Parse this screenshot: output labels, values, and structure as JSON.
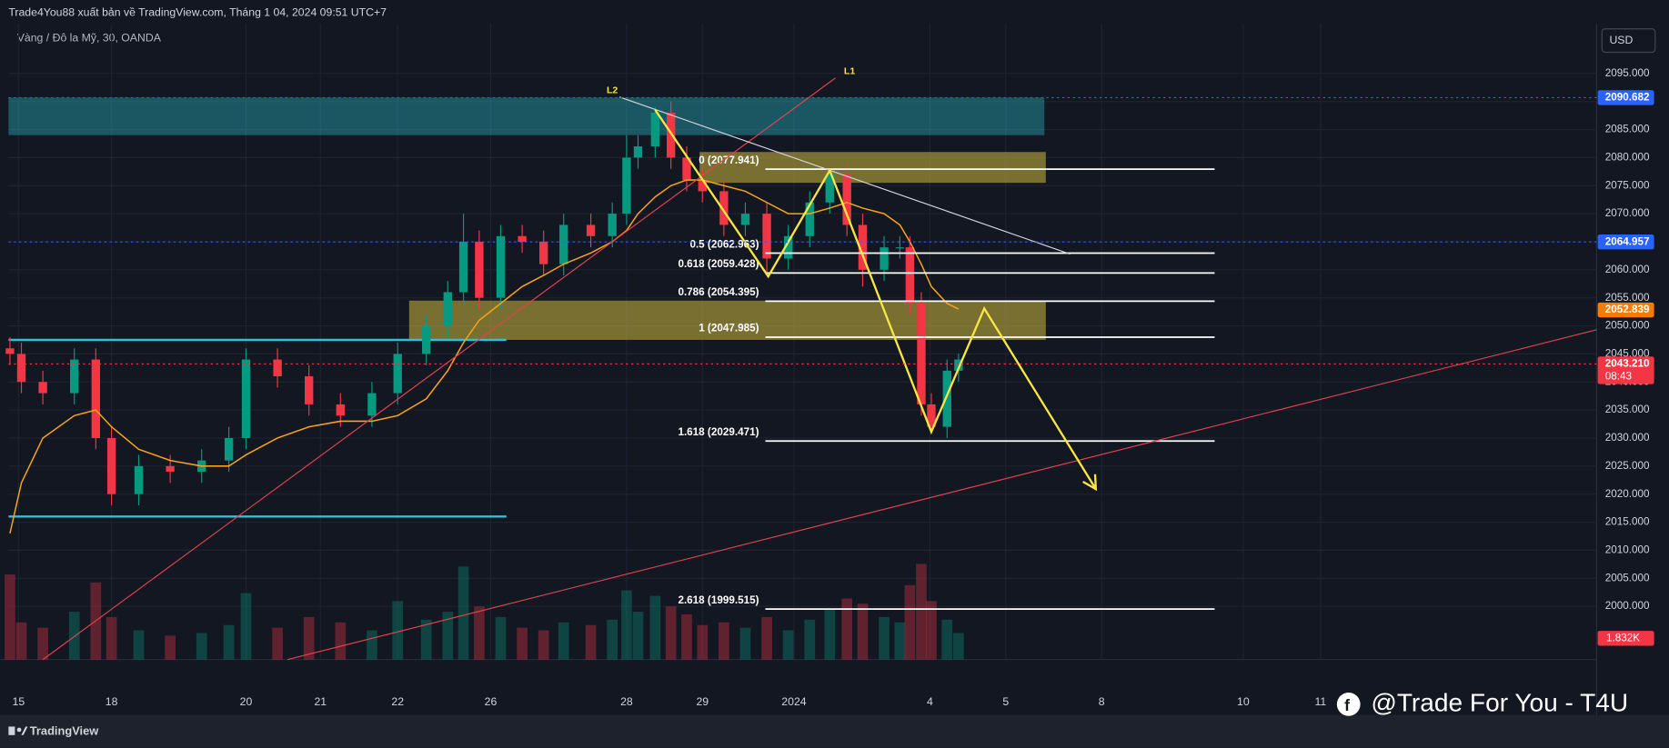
{
  "header": {
    "publisher": "Trade4You88 xuất bản về TradingView.com, Tháng 1 04, 2024 09:51 UTC+7",
    "symbol": "Vàng / Đô la Mỹ, 30, OANDA",
    "currency": "USD"
  },
  "footer": {
    "brand": "TradingView",
    "watermark": "@Trade For You - T4U"
  },
  "chart_data": {
    "type": "candlestick",
    "x": [
      1,
      9,
      24,
      46,
      61,
      72,
      91,
      113,
      135,
      154,
      166,
      188,
      210,
      232,
      254,
      272,
      292,
      307,
      318,
      329,
      344,
      359,
      374,
      388,
      407,
      422,
      432,
      440,
      452,
      463,
      474,
      485,
      500,
      515,
      530,
      545,
      560,
      574,
      586,
      597,
      612,
      623,
      630,
      638,
      645,
      656,
      664
    ],
    "open": [
      2046,
      2045,
      2040,
      2038,
      2044,
      2030,
      2020,
      2025,
      2024,
      2026,
      2030,
      2044,
      2041,
      2036,
      2034,
      2038,
      2045,
      2050,
      2056,
      2065,
      2055,
      2066,
      2065,
      2061,
      2068,
      2066,
      2070,
      2080,
      2082,
      2088,
      2080,
      2076,
      2074,
      2068,
      2070,
      2062,
      2066,
      2072,
      2077,
      2068,
      2060,
      2064,
      2064,
      2054,
      2036,
      2032,
      2042
    ],
    "high": [
      2048,
      2047,
      2042,
      2046,
      2046,
      2032,
      2027,
      2027,
      2028,
      2032,
      2046,
      2046,
      2043,
      2038,
      2040,
      2047,
      2052,
      2058,
      2070,
      2067,
      2068,
      2068,
      2067,
      2070,
      2070,
      2072,
      2084,
      2084,
      2089,
      2090,
      2082,
      2078,
      2076,
      2072,
      2072,
      2068,
      2074,
      2078,
      2079,
      2070,
      2066,
      2066,
      2066,
      2056,
      2038,
      2044,
      2045
    ],
    "low": [
      2043,
      2038,
      2036,
      2036,
      2028,
      2018,
      2018,
      2022,
      2022,
      2024,
      2028,
      2039,
      2034,
      2032,
      2032,
      2036,
      2043,
      2048,
      2054,
      2053,
      2053,
      2063,
      2059,
      2059,
      2064,
      2064,
      2068,
      2078,
      2080,
      2078,
      2074,
      2072,
      2066,
      2066,
      2059,
      2060,
      2064,
      2070,
      2066,
      2057,
      2058,
      2062,
      2052,
      2034,
      2031,
      2030,
      2040
    ],
    "close": [
      2045,
      2040,
      2038,
      2044,
      2030,
      2020,
      2025,
      2024,
      2026,
      2030,
      2044,
      2041,
      2036,
      2034,
      2038,
      2045,
      2050,
      2056,
      2065,
      2055,
      2066,
      2065,
      2061,
      2068,
      2066,
      2070,
      2080,
      2082,
      2088,
      2080,
      2076,
      2074,
      2068,
      2070,
      2062,
      2066,
      2072,
      2077,
      2068,
      2060,
      2064,
      2064,
      2054,
      2036,
      2032,
      2042,
      2044
    ],
    "ma": {
      "color": "#f7a21b",
      "values": [
        2013,
        2022,
        2030,
        2034,
        2035,
        2032,
        2028,
        2026,
        2025,
        2025,
        2027,
        2030,
        2032,
        2033,
        2033,
        2034,
        2037,
        2042,
        2047,
        2051,
        2054,
        2057,
        2059,
        2061,
        2063,
        2065,
        2067,
        2070,
        2073,
        2075,
        2076,
        2076,
        2075,
        2074,
        2072,
        2070,
        2070,
        2071,
        2072,
        2071,
        2070,
        2068,
        2065,
        2061,
        2057,
        2054,
        2053
      ]
    },
    "volume": [
      3.2,
      1.4,
      1.2,
      1.8,
      2.9,
      1.6,
      1.1,
      0.9,
      1.0,
      1.3,
      2.5,
      1.2,
      1.6,
      1.4,
      1.1,
      2.2,
      1.5,
      1.8,
      3.5,
      2.0,
      1.6,
      1.2,
      1.1,
      1.4,
      1.3,
      1.5,
      2.6,
      1.8,
      2.4,
      2.0,
      1.7,
      1.3,
      1.4,
      1.2,
      1.6,
      1.1,
      1.5,
      1.9,
      2.3,
      2.1,
      1.6,
      1.4,
      2.8,
      3.6,
      2.2,
      1.5,
      1.0
    ],
    "volume_lim": [
      0,
      6
    ],
    "volume_label": "1.832K",
    "up_color": "#089981",
    "down_color": "#f23645",
    "xlim": [
      0,
      1110
    ],
    "ylim": [
      1990.5,
      2103.9
    ],
    "xticks": [
      {
        "value": 7,
        "label": "15"
      },
      {
        "value": 72,
        "label": "18"
      },
      {
        "value": 166,
        "label": "20"
      },
      {
        "value": 218,
        "label": "21"
      },
      {
        "value": 272,
        "label": "22"
      },
      {
        "value": 337,
        "label": "26"
      },
      {
        "value": 432,
        "label": "28"
      },
      {
        "value": 485,
        "label": "29"
      },
      {
        "value": 549,
        "label": "2024"
      },
      {
        "value": 644,
        "label": "4"
      },
      {
        "value": 697,
        "label": "5"
      },
      {
        "value": 764,
        "label": "8"
      },
      {
        "value": 863,
        "label": "10"
      },
      {
        "value": 917,
        "label": "11"
      }
    ],
    "yticks": [
      {
        "value": 2000,
        "label": "2000.000"
      },
      {
        "value": 2005,
        "label": "2005.000"
      },
      {
        "value": 2010,
        "label": "2010.000"
      },
      {
        "value": 2015,
        "label": "2015.000"
      },
      {
        "value": 2020,
        "label": "2020.000"
      },
      {
        "value": 2025,
        "label": "2025.000"
      },
      {
        "value": 2030,
        "label": "2030.000"
      },
      {
        "value": 2035,
        "label": "2035.000"
      },
      {
        "value": 2040,
        "label": "2040.000"
      },
      {
        "value": 2045,
        "label": "2045.000"
      },
      {
        "value": 2050,
        "label": "2050.000"
      },
      {
        "value": 2055,
        "label": "2055.000"
      },
      {
        "value": 2060,
        "label": "2060.000"
      },
      {
        "value": 2065,
        "label": "2065.000"
      },
      {
        "value": 2070,
        "label": "2070.000"
      },
      {
        "value": 2075,
        "label": "2075.000"
      },
      {
        "value": 2080,
        "label": "2080.000"
      },
      {
        "value": 2085,
        "label": "2085.000"
      },
      {
        "value": 2090,
        "label": "2090.000"
      },
      {
        "value": 2095,
        "label": "2095.000"
      }
    ],
    "grid": true,
    "zones": [
      {
        "from": 0,
        "to": 724,
        "top": 2090.7,
        "bottom": 2084,
        "color": "rgba(38,166,180,0.45)"
      },
      {
        "from": 483,
        "to": 725,
        "top": 2081,
        "bottom": 2075.5,
        "color": "rgba(190,170,60,0.6)"
      },
      {
        "from": 280,
        "to": 725,
        "top": 2054.5,
        "bottom": 2047.5,
        "color": "rgba(190,170,60,0.6)"
      }
    ],
    "hlines": [
      {
        "from": 0,
        "to": 348,
        "price": 2047.5,
        "color": "#26c6da"
      },
      {
        "from": 0,
        "to": 348,
        "price": 2016,
        "color": "#26c6da"
      }
    ],
    "fib_from": 529,
    "fib_to": 843,
    "fib": [
      {
        "label": "0 (2077.941)",
        "value": 2077.941
      },
      {
        "label": "0.5 (2062.963)",
        "value": 2062.963
      },
      {
        "label": "0.618 (2059.428)",
        "value": 2059.428
      },
      {
        "label": "0.786 (2054.395)",
        "value": 2054.395
      },
      {
        "label": "1 (2047.985)",
        "value": 2047.985
      },
      {
        "label": "1.618 (2029.471)",
        "value": 2029.471
      },
      {
        "label": "2.618 (1999.515)",
        "value": 1999.515
      }
    ],
    "trendlines": [
      {
        "label": "L1",
        "x": [
          24,
          578
        ],
        "y": [
          1990.5,
          2094.2
        ],
        "color": "#e0424f"
      },
      {
        "label": "L2",
        "x": [
          427,
          742
        ],
        "y": [
          2090.8,
          2062.8
        ],
        "color": "#d1d4dc"
      },
      {
        "x": [
          195,
          1110
        ],
        "y": [
          1990.5,
          2049.3
        ],
        "color": "#e0424f"
      }
    ],
    "zigzag": {
      "color": "#f5e642",
      "x": [
        452,
        531,
        574,
        645,
        682,
        760
      ],
      "y": [
        2088.5,
        2058.8,
        2077.7,
        2031.1,
        2053.1,
        2020.9
      ]
    },
    "price_labels": [
      {
        "value": 2090.682,
        "label": "2090.682",
        "color": "#2962ff",
        "dotted": true
      },
      {
        "value": 2064.957,
        "label": "2064.957",
        "color": "#2962ff",
        "dotted": true
      },
      {
        "value": 2052.839,
        "label": "2052.839",
        "color": "#f57c00",
        "dotted": false
      },
      {
        "value": 2043.21,
        "label": "2043.210",
        "color": "#f23645",
        "dotted": true,
        "timer": "08:43"
      }
    ]
  }
}
